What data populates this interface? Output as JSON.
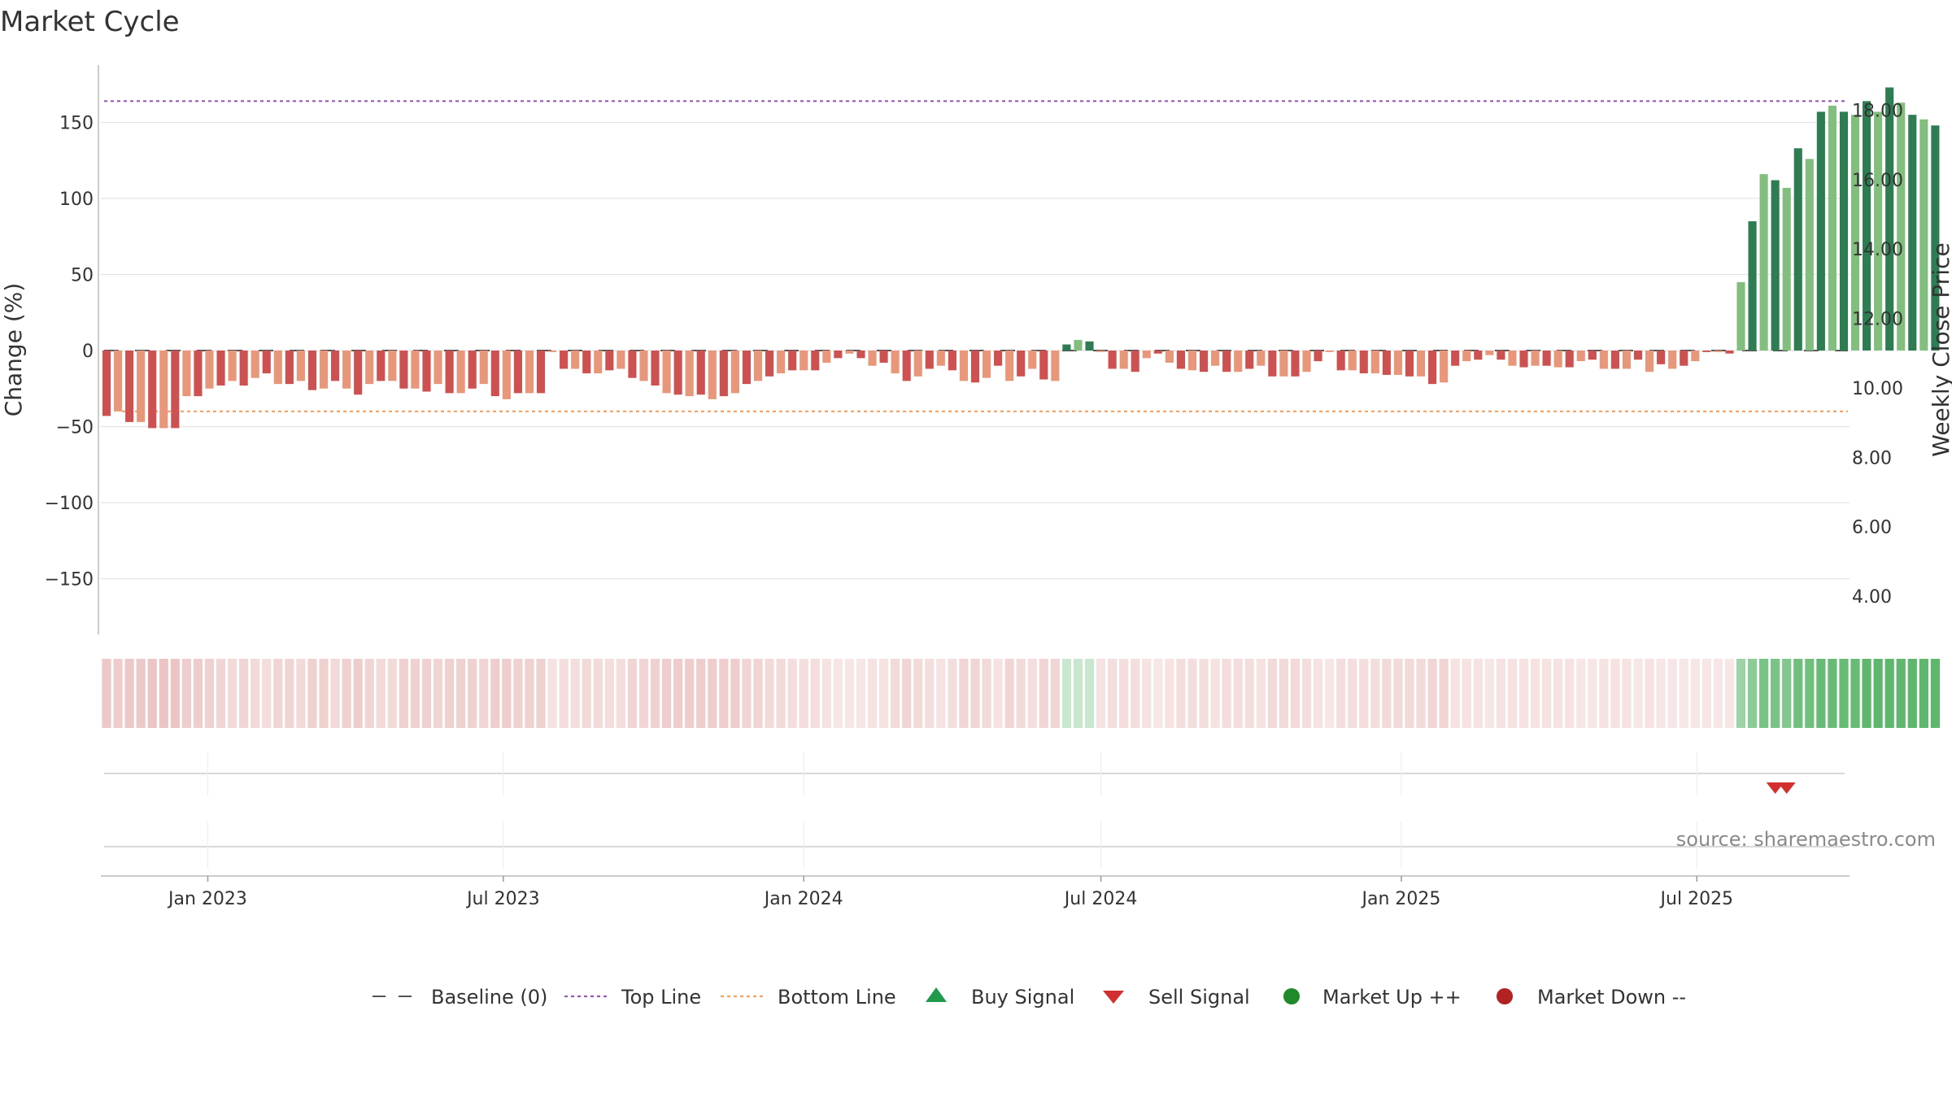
{
  "chart_data": {
    "type": "bar",
    "title": "Market Cycle",
    "ylabel": "Change (%)",
    "y2label": "Weekly Close Price",
    "ylim": [
      -188,
      188
    ],
    "y2lim": [
      2.9,
      19.3
    ],
    "yticks": [
      150,
      100,
      50,
      0,
      -50,
      -100,
      -150
    ],
    "yticklabels": [
      "150",
      "100",
      "50",
      "0",
      "−50",
      "−100",
      "−150"
    ],
    "y2ticks": [
      18,
      16,
      14,
      12,
      10,
      8,
      6,
      4
    ],
    "y2ticklabels": [
      "18.00",
      "16.00",
      "14.00",
      "12.00",
      "10.00",
      "8.00",
      "6.00",
      "4.00"
    ],
    "x_start": "2022-10-31",
    "x_end": "2025-09-29",
    "week_step_days": 7,
    "xticks": [
      {
        "date": "2023-01-01",
        "label": "Jan 2023"
      },
      {
        "date": "2023-07-01",
        "label": "Jul 2023"
      },
      {
        "date": "2024-01-01",
        "label": "Jan 2024"
      },
      {
        "date": "2024-07-01",
        "label": "Jul 2024"
      },
      {
        "date": "2025-01-01",
        "label": "Jan 2025"
      },
      {
        "date": "2025-07-01",
        "label": "Jul 2025"
      }
    ],
    "top_line": 164,
    "bottom_line": -40,
    "baseline": 0,
    "values": [
      -43,
      -40,
      -47,
      -47,
      -51,
      -51,
      -51,
      -30,
      -30,
      -25,
      -23,
      -20,
      -23,
      -18,
      -15,
      -22,
      -22,
      -20,
      -26,
      -25,
      -20,
      -25,
      -29,
      -22,
      -20,
      -20,
      -25,
      -25,
      -27,
      -22,
      -28,
      -28,
      -25,
      -22,
      -30,
      -32,
      -28,
      -28,
      -28,
      -1,
      -12,
      -12,
      -15,
      -15,
      -13,
      -12,
      -18,
      -20,
      -23,
      -28,
      -29,
      -30,
      -29,
      -32,
      -30,
      -28,
      -22,
      -20,
      -17,
      -15,
      -13,
      -13,
      -13,
      -8,
      -5,
      -2,
      -5,
      -10,
      -8,
      -15,
      -20,
      -17,
      -12,
      -10,
      -13,
      -20,
      -21,
      -18,
      -10,
      -20,
      -17,
      -12,
      -19,
      -20,
      4,
      7,
      6,
      -1,
      -12,
      -12,
      -14,
      -5,
      -2,
      -8,
      -12,
      -13,
      -14,
      -10,
      -14,
      -14,
      -12,
      -10,
      -17,
      -17,
      -17,
      -14,
      -7,
      -1,
      -13,
      -13,
      -15,
      -15,
      -16,
      -16,
      -17,
      -17,
      -22,
      -21,
      -10,
      -7,
      -6,
      -3,
      -6,
      -10,
      -11,
      -10,
      -10,
      -11,
      -11,
      -7,
      -6,
      -12,
      -12,
      -12,
      -6,
      -14,
      -9,
      -12,
      -10,
      -7,
      -1,
      -1,
      -2,
      45,
      85,
      116,
      112,
      107,
      133,
      126,
      157,
      161,
      157,
      155,
      164,
      157,
      173,
      163,
      155,
      152,
      148
    ],
    "strength": [
      0.65,
      0.6,
      0.65,
      0.65,
      0.7,
      0.7,
      0.7,
      0.6,
      0.6,
      0.55,
      0.5,
      0.45,
      0.5,
      0.45,
      0.4,
      0.5,
      0.5,
      0.45,
      0.55,
      0.55,
      0.45,
      0.55,
      0.6,
      0.5,
      0.45,
      0.45,
      0.55,
      0.55,
      0.55,
      0.5,
      0.55,
      0.55,
      0.55,
      0.5,
      0.6,
      0.6,
      0.55,
      0.55,
      0.55,
      0.35,
      0.4,
      0.4,
      0.45,
      0.45,
      0.4,
      0.4,
      0.5,
      0.5,
      0.55,
      0.6,
      0.6,
      0.6,
      0.6,
      0.6,
      0.6,
      0.6,
      0.5,
      0.5,
      0.45,
      0.45,
      0.4,
      0.4,
      0.4,
      0.35,
      0.3,
      0.3,
      0.3,
      0.35,
      0.35,
      0.45,
      0.5,
      0.45,
      0.4,
      0.35,
      0.4,
      0.5,
      0.5,
      0.45,
      0.35,
      0.5,
      0.45,
      0.4,
      0.5,
      0.5,
      0.3,
      0.3,
      0.3,
      0.35,
      0.4,
      0.4,
      0.4,
      0.35,
      0.3,
      0.35,
      0.4,
      0.4,
      0.4,
      0.35,
      0.4,
      0.4,
      0.4,
      0.35,
      0.45,
      0.45,
      0.45,
      0.4,
      0.35,
      0.3,
      0.4,
      0.4,
      0.4,
      0.4,
      0.45,
      0.45,
      0.45,
      0.45,
      0.5,
      0.5,
      0.35,
      0.35,
      0.35,
      0.3,
      0.35,
      0.35,
      0.35,
      0.35,
      0.35,
      0.35,
      0.35,
      0.3,
      0.3,
      0.35,
      0.35,
      0.35,
      0.3,
      0.35,
      0.3,
      0.3,
      0.3,
      0.3,
      0.3,
      0.3,
      0.3,
      0.55,
      0.65,
      0.75,
      0.75,
      0.7,
      0.8,
      0.8,
      0.85,
      0.85,
      0.85,
      0.85,
      0.9,
      0.9,
      0.9,
      0.9,
      0.9,
      0.9,
      0.9
    ],
    "buy_signals": [],
    "sell_signals": [
      "2025-08-18",
      "2025-08-25"
    ],
    "colors": {
      "up_strong": "#2e7d52",
      "up_light": "#82bf7e",
      "down_strong": "#cd5151",
      "down_light": "#e8977a",
      "top_line": "#9b59b6",
      "bottom_line": "#f0a060",
      "baseline": "#555555",
      "grid": "#e3e3e3",
      "axis": "#bbbbbb",
      "heat_up": "#4caf5d",
      "heat_down": "#d9908e",
      "buy": "#1e9a4a",
      "sell": "#d32f2f",
      "market_up": "#1e8a2a",
      "market_down": "#b22222"
    },
    "source": "source: sharemaestro.com",
    "legend": [
      {
        "key": "baseline",
        "label": "Baseline (0)"
      },
      {
        "key": "top",
        "label": "Top Line"
      },
      {
        "key": "bottom",
        "label": "Bottom Line"
      },
      {
        "key": "buy",
        "label": "Buy Signal"
      },
      {
        "key": "sell",
        "label": "Sell Signal"
      },
      {
        "key": "up",
        "label": "Market Up ++"
      },
      {
        "key": "down",
        "label": "Market Down --"
      }
    ]
  }
}
